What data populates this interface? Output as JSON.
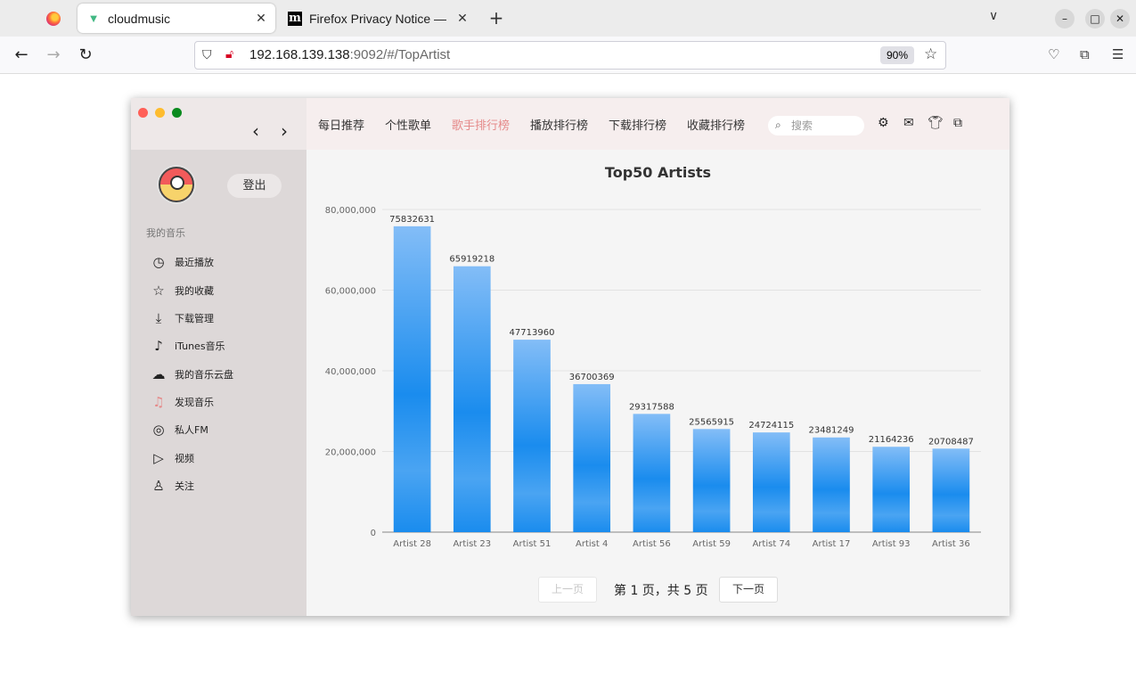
{
  "browser": {
    "tabs": [
      {
        "label": "cloudmusic"
      },
      {
        "label": "Firefox Privacy Notice —"
      }
    ],
    "url_host": "192.168.139.138",
    "url_rest": ":9092/#/TopArtist",
    "zoom": "90%"
  },
  "app": {
    "logout_label": "登出",
    "section_title": "我的音乐",
    "menu": [
      {
        "label": "最近播放",
        "icon": "recent-icon"
      },
      {
        "label": "我的收藏",
        "icon": "star-icon"
      },
      {
        "label": "下载管理",
        "icon": "download-icon"
      },
      {
        "label": "iTunes音乐",
        "icon": "music-note-icon"
      },
      {
        "label": "我的音乐云盘",
        "icon": "cloud-icon"
      },
      {
        "label": "发现音乐",
        "icon": "discover-icon",
        "active": true
      },
      {
        "label": "私人FM",
        "icon": "radio-icon"
      },
      {
        "label": "视频",
        "icon": "video-icon"
      },
      {
        "label": "关注",
        "icon": "follow-icon"
      }
    ],
    "nav": [
      {
        "label": "每日推荐"
      },
      {
        "label": "个性歌单"
      },
      {
        "label": "歌手排行榜",
        "active": true
      },
      {
        "label": "播放排行榜"
      },
      {
        "label": "下载排行榜"
      },
      {
        "label": "收藏排行榜"
      }
    ],
    "search_placeholder": "搜索",
    "pager": {
      "prev": "上一页",
      "text": "第 1 页，共 5 页",
      "next": "下一页"
    },
    "accent_color": "#e58a8a"
  },
  "chart_data": {
    "type": "bar",
    "title": "Top50 Artists",
    "categories": [
      "Artist 28",
      "Artist 23",
      "Artist 51",
      "Artist 4",
      "Artist 56",
      "Artist 59",
      "Artist 74",
      "Artist 17",
      "Artist 93",
      "Artist 36"
    ],
    "values": [
      75832631,
      65919218,
      47713960,
      36700369,
      29317588,
      25565915,
      24724115,
      23481249,
      21164236,
      20708487
    ],
    "ylim": [
      0,
      80000000
    ],
    "yticks": [
      "0",
      "20,000,000",
      "40,000,000",
      "60,000,000",
      "80,000,000"
    ],
    "grid": true,
    "bar_color": "#1a8cee"
  }
}
